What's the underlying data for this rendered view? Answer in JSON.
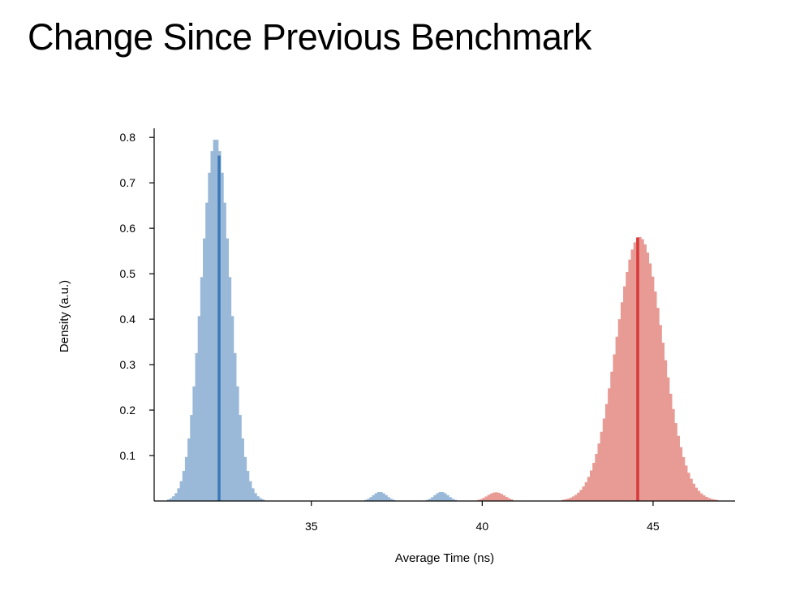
{
  "chart_data": {
    "type": "area",
    "title": "Change Since Previous Benchmark",
    "xlabel": "Average Time (ns)",
    "ylabel": "Density (a.u.)",
    "xlim": [
      30.4,
      47.4
    ],
    "ylim": [
      0,
      0.82
    ],
    "xticks": [
      35,
      40,
      45
    ],
    "yticks": [
      0.1,
      0.2,
      0.3,
      0.4,
      0.5,
      0.6,
      0.7,
      0.8
    ],
    "grid": false,
    "series": [
      {
        "color": "#9ab9d8",
        "components": [
          {
            "weight": 0.84,
            "mean": 32.2,
            "sd": 0.42
          },
          {
            "weight": 0.01,
            "mean": 37.0,
            "sd": 0.2
          },
          {
            "weight": 0.01,
            "mean": 38.8,
            "sd": 0.2
          }
        ],
        "mean_line": {
          "x": 32.3,
          "y": 0.76,
          "color": "#3b78b8"
        }
      },
      {
        "color": "#e89a94",
        "components": [
          {
            "weight": 0.99,
            "mean": 44.6,
            "sd": 0.68
          },
          {
            "weight": 0.012,
            "mean": 40.4,
            "sd": 0.25
          }
        ],
        "mean_line": {
          "x": 44.55,
          "y": 0.58,
          "color": "#d8393a"
        }
      }
    ]
  }
}
